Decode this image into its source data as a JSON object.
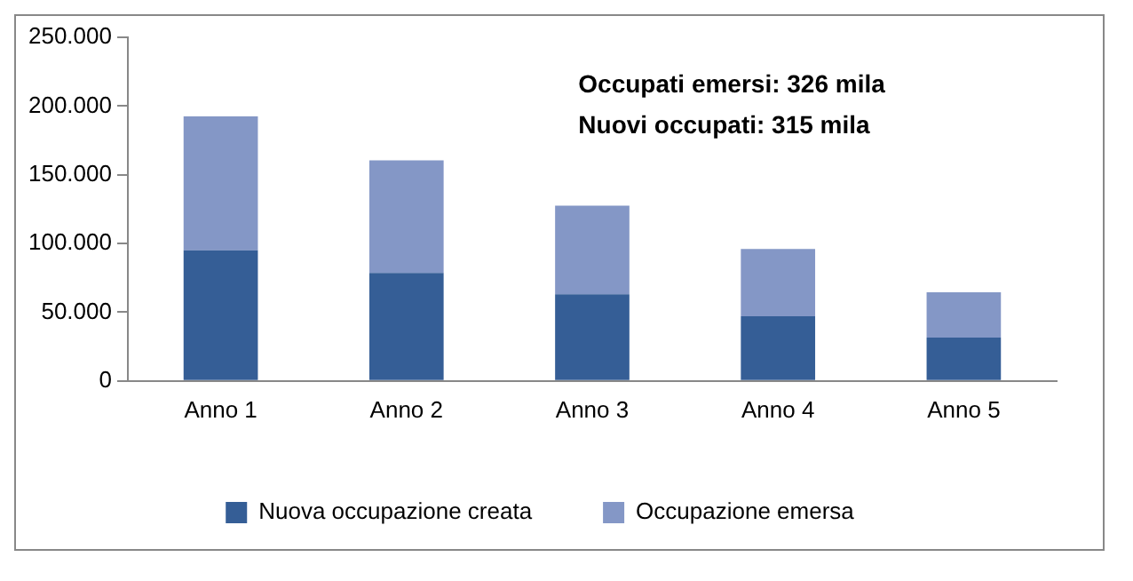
{
  "chart_data": {
    "type": "bar",
    "stacked": true,
    "categories": [
      "Anno 1",
      "Anno 2",
      "Anno 3",
      "Anno 4",
      "Anno 5"
    ],
    "series": [
      {
        "name": "Nuova occupazione creata",
        "color": "#355e96",
        "values": [
          95000,
          78500,
          63000,
          47000,
          31500
        ]
      },
      {
        "name": "Occupazione emersa",
        "color": "#8497c6",
        "values": [
          97500,
          82000,
          64500,
          49000,
          33000
        ]
      }
    ],
    "ylim": [
      0,
      250000
    ],
    "yticks": [
      0,
      {
        "value": 50000,
        "label": "50.000"
      },
      {
        "value": 100000,
        "label": "100.000"
      },
      {
        "value": 150000,
        "label": "150.000"
      },
      {
        "value": 200000,
        "label": "200.000"
      },
      {
        "value": 250000,
        "label": "250.000"
      }
    ],
    "grid": false,
    "legend": "bottom",
    "annotations": [
      "Occupati emersi: 326 mila",
      "Nuovi occupati: 315 mila"
    ]
  }
}
